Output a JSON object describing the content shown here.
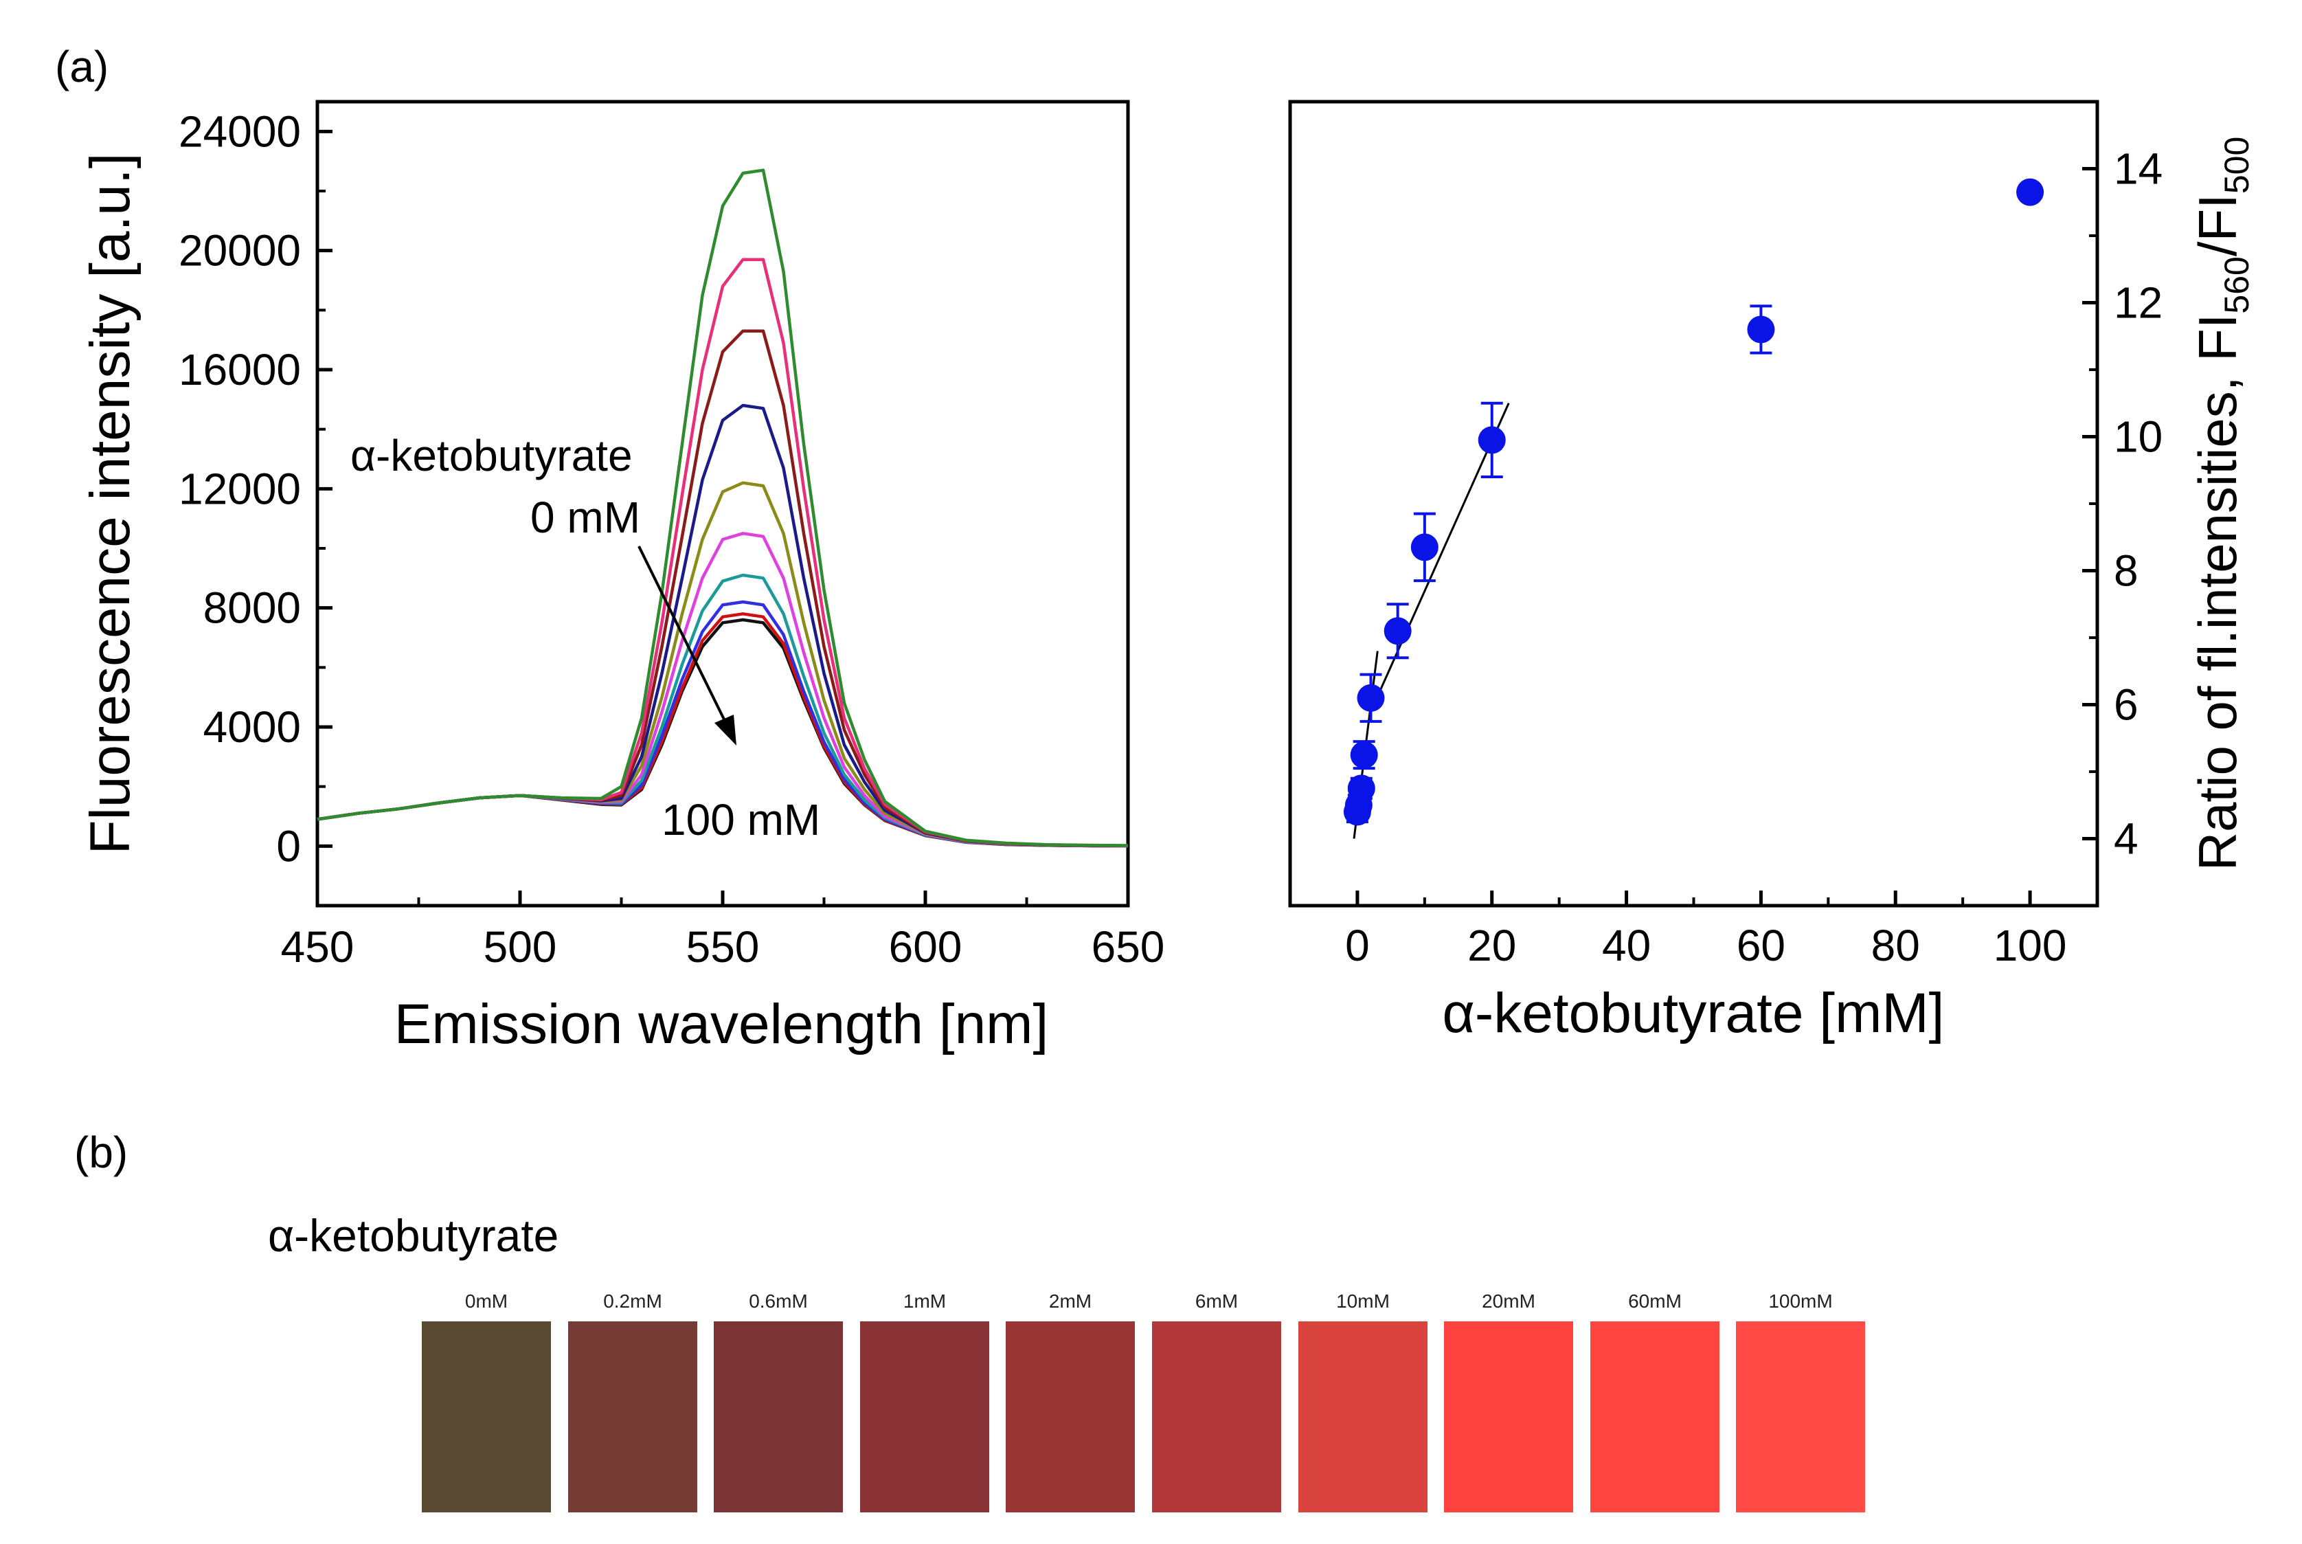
{
  "panel_labels": {
    "a": "(a)",
    "b": "(b)"
  },
  "chart_data": [
    {
      "type": "line",
      "title": "",
      "xlabel": "Emission wavelength [nm]",
      "ylabel": "Fluorescence intensity [a.u.]",
      "xlim": [
        450,
        650
      ],
      "ylim": [
        -2000,
        25000
      ],
      "xticks": [
        450,
        500,
        550,
        600,
        650
      ],
      "yticks": [
        0,
        4000,
        8000,
        12000,
        16000,
        20000,
        24000
      ],
      "annotation_title": "α-ketobutyrate",
      "annotation_start": "0 mM",
      "annotation_end": "100 mM",
      "x": [
        450,
        460,
        470,
        480,
        490,
        500,
        510,
        520,
        525,
        530,
        535,
        540,
        545,
        550,
        555,
        560,
        565,
        570,
        575,
        580,
        585,
        590,
        600,
        610,
        620,
        630,
        640,
        650
      ],
      "series": [
        {
          "name": "0 mM",
          "color": "#2e8b2e",
          "values": [
            900,
            1100,
            1250,
            1450,
            1620,
            1700,
            1620,
            1600,
            2000,
            4300,
            8500,
            13500,
            18500,
            21500,
            22600,
            22700,
            19300,
            13500,
            8600,
            4800,
            2900,
            1500,
            500,
            200,
            100,
            50,
            30,
            20
          ]
        },
        {
          "name": "0.2 mM",
          "color": "#e8307a",
          "values": [
            900,
            1100,
            1250,
            1450,
            1620,
            1700,
            1620,
            1560,
            1800,
            3800,
            7500,
            11800,
            16000,
            18800,
            19700,
            19700,
            16900,
            12000,
            7600,
            4300,
            2600,
            1400,
            480,
            190,
            90,
            45,
            25,
            15
          ]
        },
        {
          "name": "0.6 mM",
          "color": "#8b1a1a",
          "values": [
            900,
            1100,
            1250,
            1450,
            1620,
            1700,
            1620,
            1540,
            1700,
            3400,
            6700,
            10400,
            14200,
            16600,
            17300,
            17300,
            14800,
            10500,
            6700,
            3900,
            2400,
            1300,
            460,
            180,
            85,
            40,
            22,
            12
          ]
        },
        {
          "name": "1 mM",
          "color": "#1a1a8b",
          "values": [
            900,
            1100,
            1250,
            1450,
            1620,
            1700,
            1610,
            1520,
            1600,
            3000,
            5800,
            9000,
            12300,
            14300,
            14800,
            14700,
            12700,
            9000,
            5800,
            3400,
            2150,
            1200,
            440,
            170,
            80,
            38,
            20,
            10
          ]
        },
        {
          "name": "2 mM",
          "color": "#8b8b1a",
          "values": [
            900,
            1100,
            1250,
            1450,
            1620,
            1700,
            1600,
            1500,
            1550,
            2700,
            5000,
            7800,
            10300,
            11900,
            12200,
            12100,
            10500,
            7500,
            4900,
            2950,
            1900,
            1100,
            420,
            160,
            75,
            35,
            18,
            8
          ]
        },
        {
          "name": "6 mM",
          "color": "#e040e0",
          "values": [
            900,
            1100,
            1250,
            1450,
            1620,
            1700,
            1590,
            1480,
            1500,
            2400,
            4500,
            6900,
            9000,
            10300,
            10500,
            10400,
            9000,
            6500,
            4300,
            2650,
            1700,
            1000,
            400,
            150,
            70,
            32,
            15,
            6
          ]
        },
        {
          "name": "10 mM",
          "color": "#1a9a9a",
          "values": [
            900,
            1100,
            1250,
            1450,
            1620,
            1700,
            1580,
            1460,
            1450,
            2200,
            4000,
            6100,
            7900,
            8900,
            9100,
            9000,
            7800,
            5700,
            3800,
            2400,
            1550,
            950,
            380,
            140,
            65,
            30,
            14,
            5
          ]
        },
        {
          "name": "20 mM",
          "color": "#3030e0",
          "values": [
            900,
            1100,
            1250,
            1450,
            1620,
            1700,
            1570,
            1440,
            1420,
            2050,
            3700,
            5600,
            7200,
            8100,
            8200,
            8100,
            7100,
            5200,
            3500,
            2250,
            1450,
            900,
            370,
            135,
            60,
            28,
            12,
            4
          ]
        },
        {
          "name": "60 mM",
          "color": "#d01010",
          "values": [
            900,
            1100,
            1250,
            1450,
            1620,
            1700,
            1560,
            1420,
            1400,
            1950,
            3500,
            5300,
            6900,
            7700,
            7800,
            7700,
            6800,
            5000,
            3350,
            2150,
            1400,
            870,
            360,
            130,
            55,
            26,
            11,
            3
          ]
        },
        {
          "name": "100 mM",
          "color": "#111111",
          "values": [
            900,
            1100,
            1250,
            1450,
            1620,
            1700,
            1550,
            1400,
            1380,
            1900,
            3400,
            5200,
            6700,
            7500,
            7600,
            7500,
            6650,
            4900,
            3300,
            2100,
            1380,
            860,
            355,
            128,
            52,
            25,
            10,
            2
          ]
        }
      ]
    },
    {
      "type": "scatter",
      "title": "",
      "xlabel": "α-ketobutyrate [mM]",
      "ylabel": "Ratio of fl.intensities, FI560/FI500",
      "ylabel_main": "Ratio of fl.intensities, FI",
      "ylabel_sub1": "560",
      "ylabel_mid": "/FI",
      "ylabel_sub2": "500",
      "xlim": [
        -10,
        110
      ],
      "ylim": [
        3,
        15
      ],
      "xticks": [
        0,
        20,
        40,
        60,
        80,
        100
      ],
      "yticks": [
        4,
        6,
        8,
        10,
        12,
        14
      ],
      "point_color": "#0a14e6",
      "points": [
        {
          "x": 0,
          "y": 4.4,
          "err": 0.15
        },
        {
          "x": 0.2,
          "y": 4.5,
          "err": 0.15
        },
        {
          "x": 0.6,
          "y": 4.75,
          "err": 0.15
        },
        {
          "x": 1,
          "y": 5.25,
          "err": 0.2
        },
        {
          "x": 2,
          "y": 6.1,
          "err": 0.35
        },
        {
          "x": 6,
          "y": 7.1,
          "err": 0.4
        },
        {
          "x": 10,
          "y": 8.35,
          "err": 0.5
        },
        {
          "x": 20,
          "y": 9.95,
          "err": 0.55
        },
        {
          "x": 60,
          "y": 11.6,
          "err": 0.35
        },
        {
          "x": 100,
          "y": 13.65,
          "err": 0.1
        }
      ],
      "fit_lines": [
        {
          "x": [
            -0.5,
            3
          ],
          "y": [
            4.0,
            6.8
          ]
        },
        {
          "x": [
            2,
            22.5
          ],
          "y": [
            5.9,
            10.5
          ]
        }
      ]
    }
  ],
  "legend_b": {
    "title": "α-ketobutyrate",
    "swatches": [
      {
        "label": "0mM",
        "color": "#5b4a33"
      },
      {
        "label": "0.2mM",
        "color": "#773b36"
      },
      {
        "label": "0.6mM",
        "color": "#7b3334"
      },
      {
        "label": "1mM",
        "color": "#8a3336"
      },
      {
        "label": "2mM",
        "color": "#9a3535"
      },
      {
        "label": "6mM",
        "color": "#b2383a"
      },
      {
        "label": "10mM",
        "color": "#d9443f"
      },
      {
        "label": "20mM",
        "color": "#ff4440"
      },
      {
        "label": "60mM",
        "color": "#ff4540"
      },
      {
        "label": "100mM",
        "color": "#ff4a45"
      }
    ]
  }
}
